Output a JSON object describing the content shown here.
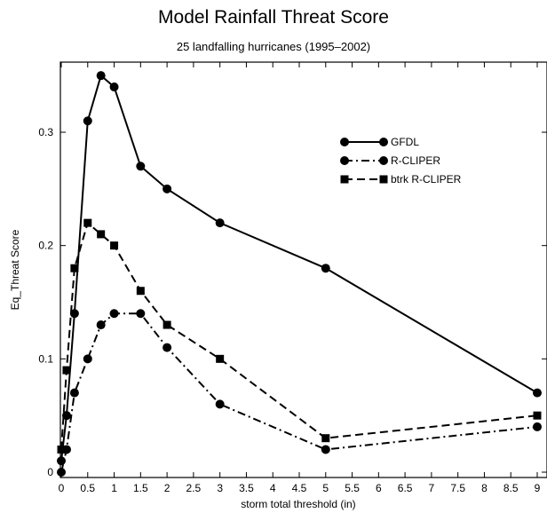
{
  "chart_data": {
    "type": "line",
    "title": "Model Rainfall Threat Score",
    "subtitle": "25 landfalling hurricanes (1995–2002)",
    "xlabel": "storm total threshold (in)",
    "ylabel": "Eq_Threat Score",
    "xlim": [
      0,
      9.2
    ],
    "ylim": [
      0,
      0.36
    ],
    "x_ticks": [
      0,
      0.5,
      1,
      1.5,
      2,
      2.5,
      3,
      3.5,
      4,
      4.5,
      5,
      5.5,
      6,
      6.5,
      7,
      7.5,
      8,
      8.5,
      9
    ],
    "x_tick_labels": [
      "0",
      "0.5",
      "1",
      "1.5",
      "2",
      "2.5",
      "3",
      "3.5",
      "4",
      "4.5",
      "5",
      "5.5",
      "6",
      "6.5",
      "7",
      "7.5",
      "8",
      "8.5",
      "9"
    ],
    "y_ticks": [
      0,
      0.1,
      0.2,
      0.3
    ],
    "y_tick_labels": [
      "0",
      "0.1",
      "0.2",
      "0.3"
    ],
    "legend_position": "top-right",
    "grid": false,
    "series": [
      {
        "name": "GFDL",
        "line_style": "solid",
        "marker": "circle",
        "color": "#000000",
        "x": [
          0,
          0.1,
          0.25,
          0.5,
          0.75,
          1,
          1.5,
          2,
          3,
          5,
          9
        ],
        "y": [
          0.01,
          0.05,
          0.14,
          0.31,
          0.35,
          0.34,
          0.27,
          0.25,
          0.22,
          0.18,
          0.07
        ]
      },
      {
        "name": "R-CLIPER",
        "line_style": "dash-dot",
        "marker": "circle",
        "color": "#000000",
        "x": [
          0,
          0.1,
          0.25,
          0.5,
          0.75,
          1,
          1.5,
          2,
          3,
          5,
          9
        ],
        "y": [
          0,
          0.02,
          0.07,
          0.1,
          0.13,
          0.14,
          0.14,
          0.11,
          0.06,
          0.02,
          0.04
        ]
      },
      {
        "name": "btrk R-CLIPER",
        "line_style": "dashed",
        "marker": "square",
        "color": "#000000",
        "x": [
          0,
          0.1,
          0.25,
          0.5,
          0.75,
          1,
          1.5,
          2,
          3,
          5,
          9
        ],
        "y": [
          0.02,
          0.09,
          0.18,
          0.22,
          0.21,
          0.2,
          0.16,
          0.13,
          0.1,
          0.03,
          0.05
        ]
      }
    ]
  }
}
